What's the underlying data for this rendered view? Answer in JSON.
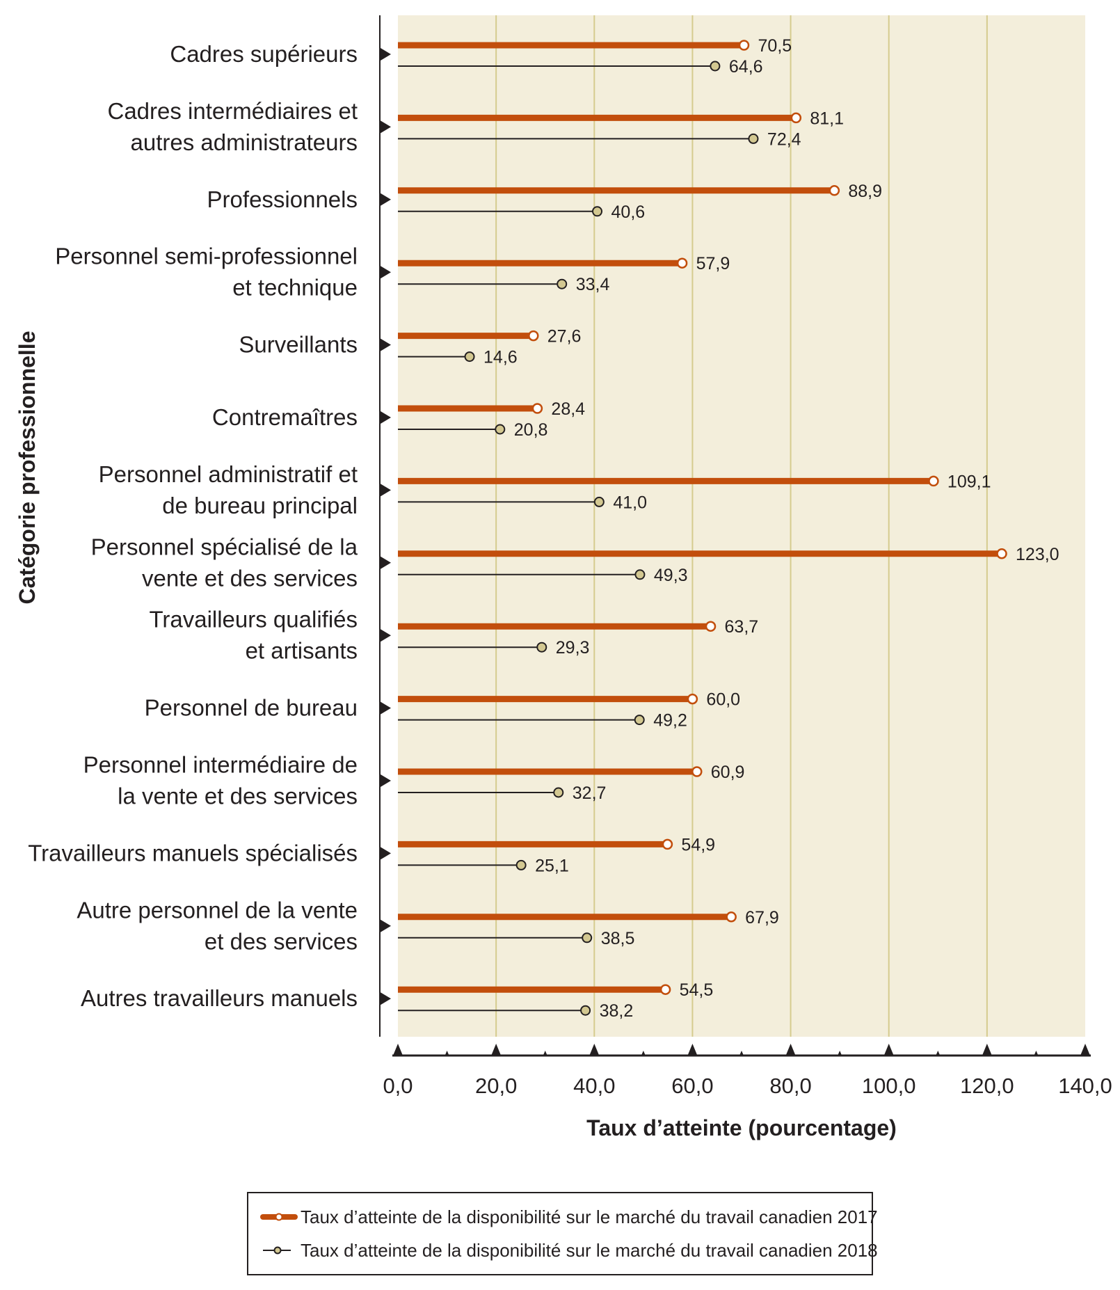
{
  "chart_data": {
    "type": "bar",
    "orientation": "horizontal",
    "title": "",
    "xlabel": "Taux d’atteinte (pourcentage)",
    "ylabel": "Catégorie professionnelle",
    "xlim": [
      0,
      140
    ],
    "xticks": [
      0,
      20,
      40,
      60,
      80,
      100,
      120,
      140
    ],
    "xtick_labels": [
      "0,0",
      "20,0",
      "40,0",
      "60,0",
      "80,0",
      "100,0",
      "120,0",
      "140,0"
    ],
    "grid": "vertical",
    "legend_position": "bottom",
    "categories": [
      [
        "Cadres supérieurs"
      ],
      [
        "Cadres intermédiaires et",
        "autres administrateurs"
      ],
      [
        "Professionnels"
      ],
      [
        "Personnel semi-professionnel",
        "et technique"
      ],
      [
        "Surveillants"
      ],
      [
        "Contremaîtres"
      ],
      [
        "Personnel administratif et",
        "de bureau principal"
      ],
      [
        "Personnel spécialisé de la",
        "vente et des services"
      ],
      [
        "Travailleurs qualifiés",
        "et artisants"
      ],
      [
        "Personnel de bureau"
      ],
      [
        "Personnel intermédiaire de",
        "la vente et des services"
      ],
      [
        "Travailleurs manuels spécialisés"
      ],
      [
        "Autre personnel de la vente",
        "et des services"
      ],
      [
        "Autres travailleurs manuels"
      ]
    ],
    "series": [
      {
        "name": "Taux d’atteinte de la disponibilité sur le marché du travail canadien 2017",
        "color": "#c24e0c",
        "values": [
          70.5,
          81.1,
          88.9,
          57.9,
          27.6,
          28.4,
          109.1,
          123.0,
          63.7,
          60.0,
          60.9,
          54.9,
          67.9,
          54.5
        ],
        "labels": [
          "70,5",
          "81,1",
          "88,9",
          "57,9",
          "27,6",
          "28,4",
          "109,1",
          "123,0",
          "63,7",
          "60,0",
          "60,9",
          "54,9",
          "67,9",
          "54,5"
        ]
      },
      {
        "name": "Taux d’atteinte de la disponibilité sur le marché du travail canadien 2018",
        "color": "#231f20",
        "marker_color": "#d3c891",
        "values": [
          64.6,
          72.4,
          40.6,
          33.4,
          14.6,
          20.8,
          41.0,
          49.3,
          29.3,
          49.2,
          32.7,
          25.1,
          38.5,
          38.2
        ],
        "labels": [
          "64,6",
          "72,4",
          "40,6",
          "33,4",
          "14,6",
          "20,8",
          "41,0",
          "49,3",
          "29,3",
          "49,2",
          "32,7",
          "25,1",
          "38,5",
          "38,2"
        ]
      }
    ]
  },
  "colors": {
    "plot_background": "#f3eedb",
    "gridline": "#d5cb8e",
    "axis": "#231f20"
  }
}
